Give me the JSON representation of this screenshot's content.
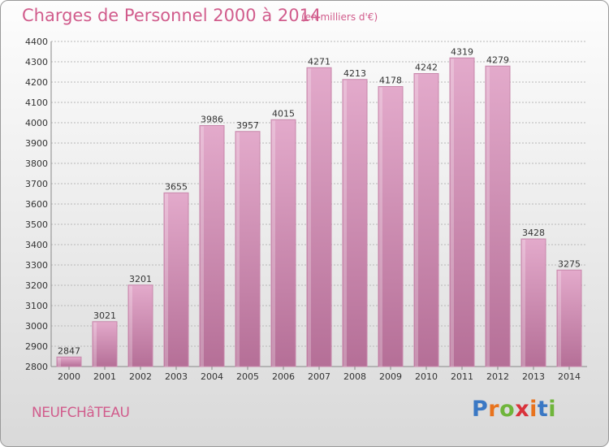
{
  "header": {
    "title": "Charges de Personnel 2000 à 2014",
    "subtitle": "(en milliers d'€)"
  },
  "footer": {
    "city": "NEUFCHâTEAU",
    "logo": {
      "letters": [
        "P",
        "r",
        "o",
        "x",
        "i",
        "t",
        "i"
      ],
      "colors": [
        "#3a78c4",
        "#e8731d",
        "#6fb53b",
        "#d9323b",
        "#e8731d",
        "#3a78c4",
        "#6fb53b"
      ]
    }
  },
  "colors": {
    "bar_top": "#e3aacb",
    "bar_bottom": "#b56f97",
    "bar_side": "#c887ab",
    "grid": "#b8b8b8",
    "title": "#d15c8c"
  },
  "chart_data": {
    "type": "bar",
    "title": "Charges de Personnel 2000 à 2014",
    "subtitle": "(en milliers d'€)",
    "categories": [
      "2000",
      "2001",
      "2002",
      "2003",
      "2004",
      "2005",
      "2006",
      "2007",
      "2008",
      "2009",
      "2010",
      "2011",
      "2012",
      "2013",
      "2014"
    ],
    "values": [
      2847,
      3021,
      3201,
      3655,
      3986,
      3957,
      4015,
      4271,
      4213,
      4178,
      4242,
      4319,
      4279,
      3428,
      3275
    ],
    "ylim": [
      2800,
      4400
    ],
    "yticks": [
      2800,
      2900,
      3000,
      3100,
      3200,
      3300,
      3400,
      3500,
      3600,
      3700,
      3800,
      3900,
      4000,
      4100,
      4200,
      4300,
      4400
    ],
    "grid": true,
    "xlabel": "",
    "ylabel": ""
  }
}
